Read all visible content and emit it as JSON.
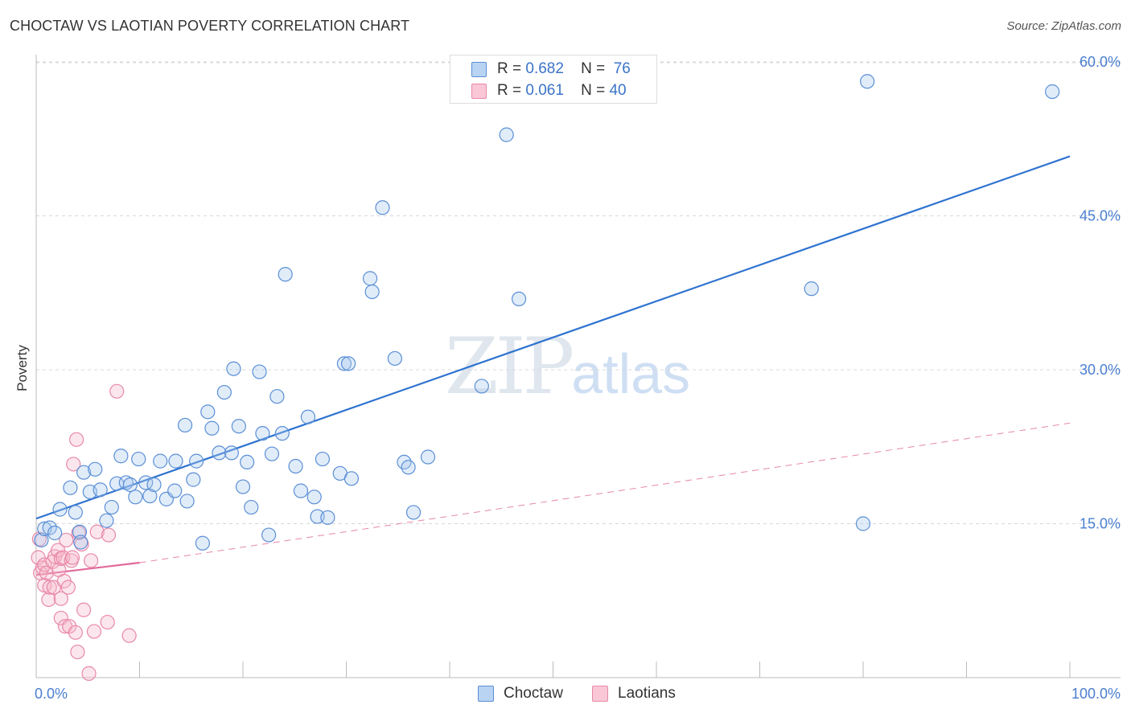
{
  "title": "CHOCTAW VS LAOTIAN POVERTY CORRELATION CHART",
  "source": "Source: ZipAtlas.com",
  "watermark": {
    "zip": "ZIP",
    "atlas": "atlas"
  },
  "colors": {
    "choctaw_fill": "#a9c8ee",
    "choctaw_stroke": "#5a8fd6",
    "choctaw_line": "#2f73d0",
    "laotian_fill": "#f7b8cb",
    "laotian_stroke": "#e889a8",
    "laotian_line": "#e0689a",
    "tick": "#4a7fd0",
    "grid": "#d8d8d8"
  },
  "legend": {
    "rows": [
      {
        "r_label": "R =",
        "r_value": "0.682",
        "n_label": "N =",
        "n_value": "76"
      },
      {
        "r_label": "R =",
        "r_value": "0.061",
        "n_label": "N =",
        "n_value": "40"
      }
    ],
    "series": [
      "Choctaw",
      "Laotians"
    ]
  },
  "chart_data": {
    "type": "scatter",
    "title": "CHOCTAW VS LAOTIAN POVERTY CORRELATION CHART",
    "xlabel": "",
    "ylabel": "Poverty",
    "xlim": [
      0,
      100
    ],
    "ylim": [
      0,
      63
    ],
    "x_tick_labels": [
      "0.0%",
      "100.0%"
    ],
    "y_ticks": [
      15,
      30,
      45,
      60
    ],
    "y_tick_labels": [
      "15.0%",
      "30.0%",
      "45.0%",
      "60.0%"
    ],
    "grid": true,
    "legend_position": "top-center",
    "series": [
      {
        "name": "Choctaw",
        "R": 0.682,
        "N": 76,
        "trend": {
          "x": [
            0,
            100
          ],
          "y": [
            15.5,
            50.8
          ],
          "style": "solid"
        },
        "points": [
          [
            0.5,
            13.4
          ],
          [
            0.8,
            14.5
          ],
          [
            1.3,
            14.6
          ],
          [
            1.8,
            14.1
          ],
          [
            2.3,
            16.4
          ],
          [
            3.3,
            18.5
          ],
          [
            3.8,
            16.1
          ],
          [
            4.2,
            14.2
          ],
          [
            4.3,
            13.2
          ],
          [
            4.6,
            20.0
          ],
          [
            5.2,
            18.1
          ],
          [
            5.7,
            20.3
          ],
          [
            6.2,
            18.3
          ],
          [
            6.8,
            15.3
          ],
          [
            7.3,
            16.6
          ],
          [
            7.8,
            18.9
          ],
          [
            8.2,
            21.6
          ],
          [
            8.7,
            19.0
          ],
          [
            9.1,
            18.8
          ],
          [
            9.6,
            17.6
          ],
          [
            9.9,
            21.3
          ],
          [
            10.6,
            19.0
          ],
          [
            11.0,
            17.7
          ],
          [
            11.4,
            18.8
          ],
          [
            12.0,
            21.1
          ],
          [
            12.6,
            17.4
          ],
          [
            13.4,
            18.2
          ],
          [
            13.5,
            21.1
          ],
          [
            14.4,
            24.6
          ],
          [
            14.6,
            17.2
          ],
          [
            15.2,
            19.3
          ],
          [
            15.5,
            21.1
          ],
          [
            16.1,
            13.1
          ],
          [
            16.6,
            25.9
          ],
          [
            17.0,
            24.3
          ],
          [
            17.7,
            21.9
          ],
          [
            18.2,
            27.8
          ],
          [
            18.9,
            21.9
          ],
          [
            19.1,
            30.1
          ],
          [
            19.6,
            24.5
          ],
          [
            20.0,
            18.6
          ],
          [
            20.4,
            21.0
          ],
          [
            20.8,
            16.6
          ],
          [
            21.6,
            29.8
          ],
          [
            21.9,
            23.8
          ],
          [
            22.5,
            13.9
          ],
          [
            22.8,
            21.8
          ],
          [
            23.3,
            27.4
          ],
          [
            23.8,
            23.8
          ],
          [
            24.1,
            39.3
          ],
          [
            25.1,
            20.6
          ],
          [
            25.6,
            18.2
          ],
          [
            26.3,
            25.4
          ],
          [
            26.9,
            17.6
          ],
          [
            27.2,
            15.7
          ],
          [
            27.7,
            21.3
          ],
          [
            28.2,
            15.6
          ],
          [
            29.4,
            19.9
          ],
          [
            29.8,
            30.6
          ],
          [
            30.2,
            30.6
          ],
          [
            30.5,
            19.4
          ],
          [
            32.3,
            38.9
          ],
          [
            32.5,
            37.6
          ],
          [
            33.5,
            45.8
          ],
          [
            34.7,
            31.1
          ],
          [
            35.6,
            21.0
          ],
          [
            36.0,
            20.5
          ],
          [
            36.5,
            16.1
          ],
          [
            37.9,
            21.5
          ],
          [
            43.1,
            28.4
          ],
          [
            45.5,
            52.9
          ],
          [
            46.7,
            36.9
          ],
          [
            75.0,
            37.9
          ],
          [
            80.0,
            15.0
          ],
          [
            80.4,
            58.1
          ],
          [
            98.3,
            57.1
          ]
        ]
      },
      {
        "name": "Laotians",
        "R": 0.061,
        "N": 40,
        "trend": {
          "x": [
            0,
            10
          ],
          "y": [
            10.0,
            11.2
          ],
          "style": "solid",
          "extended_to": {
            "x": 100,
            "y": 24.8,
            "style": "dashed"
          }
        },
        "points": [
          [
            0.2,
            11.7
          ],
          [
            0.4,
            10.2
          ],
          [
            0.6,
            10.7
          ],
          [
            0.8,
            11.0
          ],
          [
            0.8,
            9.0
          ],
          [
            1.0,
            10.2
          ],
          [
            1.2,
            7.6
          ],
          [
            1.3,
            8.8
          ],
          [
            1.6,
            11.3
          ],
          [
            1.7,
            8.8
          ],
          [
            1.8,
            11.8
          ],
          [
            2.1,
            12.4
          ],
          [
            2.2,
            10.5
          ],
          [
            2.4,
            11.6
          ],
          [
            2.4,
            5.8
          ],
          [
            2.4,
            7.7
          ],
          [
            2.6,
            11.7
          ],
          [
            2.7,
            9.4
          ],
          [
            2.8,
            5.0
          ],
          [
            2.9,
            13.4
          ],
          [
            3.1,
            8.8
          ],
          [
            3.2,
            5.0
          ],
          [
            3.4,
            11.4
          ],
          [
            3.5,
            11.7
          ],
          [
            3.6,
            20.8
          ],
          [
            3.8,
            4.4
          ],
          [
            3.9,
            23.2
          ],
          [
            4.0,
            2.5
          ],
          [
            4.1,
            14.1
          ],
          [
            4.4,
            13.0
          ],
          [
            4.6,
            6.6
          ],
          [
            5.1,
            0.4
          ],
          [
            5.3,
            11.4
          ],
          [
            5.6,
            4.5
          ],
          [
            5.9,
            14.2
          ],
          [
            6.9,
            5.4
          ],
          [
            7.0,
            13.9
          ],
          [
            7.8,
            27.9
          ],
          [
            9.0,
            4.1
          ],
          [
            0.3,
            13.5
          ]
        ]
      }
    ]
  }
}
